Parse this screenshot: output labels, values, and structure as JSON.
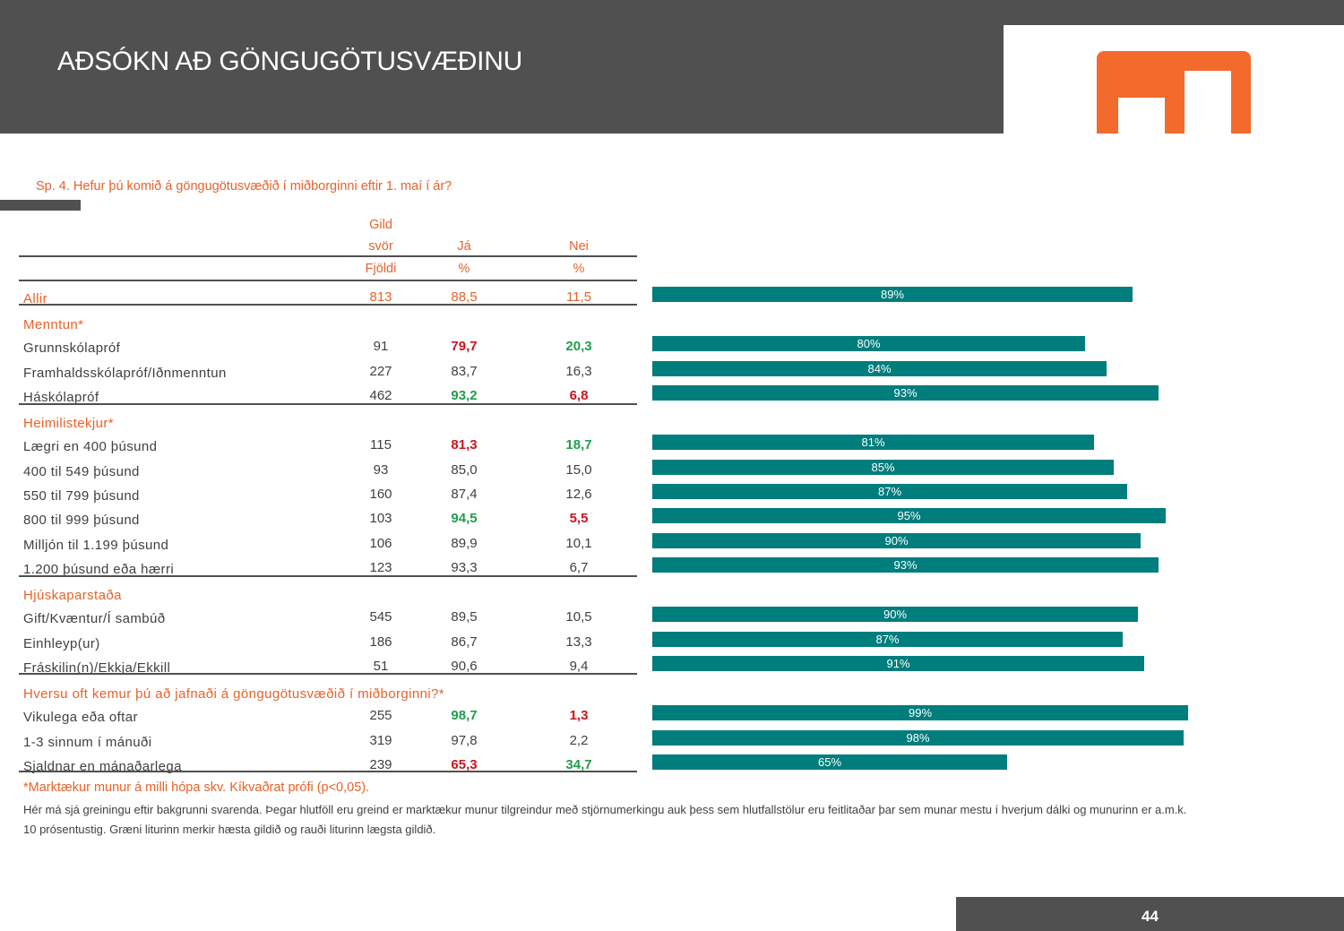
{
  "header": {
    "title": "AÐSÓKN AÐ GÖNGUGÖTUSVÆÐINU",
    "logo_icon": "brand-logo-icon",
    "logo_color": "#f26a2c",
    "band_color": "#505050"
  },
  "question": "Sp. 4. Hefur þú komið á göngugötusvæðið í miðborginni eftir 1. maí í ár?",
  "table_headers": {
    "col1_line1": "Gild",
    "col1_line2": "svör",
    "col1_unit": "Fjöldi",
    "col2": "Já",
    "col2_unit": "%",
    "col3": "Nei",
    "col3_unit": "%"
  },
  "rows": [
    {
      "type": "total",
      "label": "Allir",
      "n": "813",
      "ja": "88,5",
      "nei": "11,5",
      "ja_flag": "",
      "nei_flag": ""
    },
    {
      "type": "group",
      "label": "Menntun*"
    },
    {
      "type": "data",
      "label": "Grunnskólapróf",
      "n": "91",
      "ja": "79,7",
      "nei": "20,3",
      "ja_flag": "lo",
      "nei_flag": "hi"
    },
    {
      "type": "data",
      "label": "Framhaldsskólapróf/Iðnmenntun",
      "n": "227",
      "ja": "83,7",
      "nei": "16,3",
      "ja_flag": "",
      "nei_flag": ""
    },
    {
      "type": "data",
      "label": "Háskólapróf",
      "n": "462",
      "ja": "93,2",
      "nei": "6,8",
      "ja_flag": "hi",
      "nei_flag": "lo"
    },
    {
      "type": "group",
      "label": "Heimilistekjur*"
    },
    {
      "type": "data",
      "label": "Lægri en 400 þúsund",
      "n": "115",
      "ja": "81,3",
      "nei": "18,7",
      "ja_flag": "lo",
      "nei_flag": "hi"
    },
    {
      "type": "data",
      "label": "400 til 549 þúsund",
      "n": "93",
      "ja": "85,0",
      "nei": "15,0",
      "ja_flag": "",
      "nei_flag": ""
    },
    {
      "type": "data",
      "label": "550 til 799 þúsund",
      "n": "160",
      "ja": "87,4",
      "nei": "12,6",
      "ja_flag": "",
      "nei_flag": ""
    },
    {
      "type": "data",
      "label": "800 til 999 þúsund",
      "n": "103",
      "ja": "94,5",
      "nei": "5,5",
      "ja_flag": "hi",
      "nei_flag": "lo"
    },
    {
      "type": "data",
      "label": "Milljón til 1.199 þúsund",
      "n": "106",
      "ja": "89,9",
      "nei": "10,1",
      "ja_flag": "",
      "nei_flag": ""
    },
    {
      "type": "data",
      "label": "1.200 þúsund eða hærri",
      "n": "123",
      "ja": "93,3",
      "nei": "6,7",
      "ja_flag": "",
      "nei_flag": ""
    },
    {
      "type": "group",
      "label": "Hjúskaparstaða"
    },
    {
      "type": "data",
      "label": "Gift/Kvæntur/Í sambúð",
      "n": "545",
      "ja": "89,5",
      "nei": "10,5",
      "ja_flag": "",
      "nei_flag": ""
    },
    {
      "type": "data",
      "label": "Einhleyp(ur)",
      "n": "186",
      "ja": "86,7",
      "nei": "13,3",
      "ja_flag": "",
      "nei_flag": ""
    },
    {
      "type": "data",
      "label": "Fráskilin(n)/Ekkja/Ekkill",
      "n": "51",
      "ja": "90,6",
      "nei": "9,4",
      "ja_flag": "",
      "nei_flag": ""
    },
    {
      "type": "group",
      "label": "Hversu oft kemur þú að jafnaði á göngugötusvæðið í miðborginni?*"
    },
    {
      "type": "data",
      "label": "Vikulega eða oftar",
      "n": "255",
      "ja": "98,7",
      "nei": "1,3",
      "ja_flag": "hi",
      "nei_flag": "lo"
    },
    {
      "type": "data",
      "label": "1-3 sinnum í mánuði",
      "n": "319",
      "ja": "97,8",
      "nei": "2,2",
      "ja_flag": "",
      "nei_flag": ""
    },
    {
      "type": "data",
      "label": "Sjaldnar en mánaðarlega",
      "n": "239",
      "ja": "65,3",
      "nei": "34,7",
      "ja_flag": "lo",
      "nei_flag": "hi"
    }
  ],
  "chart_data": {
    "type": "bar",
    "orientation": "horizontal",
    "title": "",
    "xlabel": "",
    "ylabel": "",
    "xlim": [
      0,
      100
    ],
    "bar_color": "#007d7d",
    "categories": [
      "Allir",
      "Grunnskólapróf",
      "Framhaldsskólapróf/Iðnmenntun",
      "Háskólapróf",
      "Lægri en 400 þúsund",
      "400 til 549 þúsund",
      "550 til 799 þúsund",
      "800 til 999 þúsund",
      "Milljón til 1.199 þúsund",
      "1.200 þúsund eða hærri",
      "Gift/Kvæntur/Í sambúð",
      "Einhleyp(ur)",
      "Fráskilin(n)/Ekkja/Ekkill",
      "Vikulega eða oftar",
      "1-3 sinnum í mánuði",
      "Sjaldnar en mánaðarlega"
    ],
    "values": [
      88.5,
      79.7,
      83.7,
      93.2,
      81.3,
      85.0,
      87.4,
      94.5,
      89.9,
      93.3,
      89.5,
      86.7,
      90.6,
      98.7,
      97.8,
      65.3
    ],
    "data_labels": [
      "89%",
      "80%",
      "84%",
      "93%",
      "81%",
      "85%",
      "87%",
      "95%",
      "90%",
      "93%",
      "90%",
      "87%",
      "91%",
      "99%",
      "98%",
      "65%"
    ]
  },
  "footnote": "*Marktækur munur á milli hópa skv. Kíkvaðrat prófi (p<0,05).",
  "note": "Hér má sjá greiningu eftir bakgrunni svarenda. Þegar hlutföll eru greind er marktækur munur tilgreindur með stjörnumerkingu auk þess sem hlutfallstölur eru feitlitaðar þar sem munar mestu í hverjum dálki og munurinn er a.m.k. 10 prósentustig. Græni liturinn merkir hæsta gildið og rauði liturinn lægsta gildið.",
  "page_number": "44"
}
